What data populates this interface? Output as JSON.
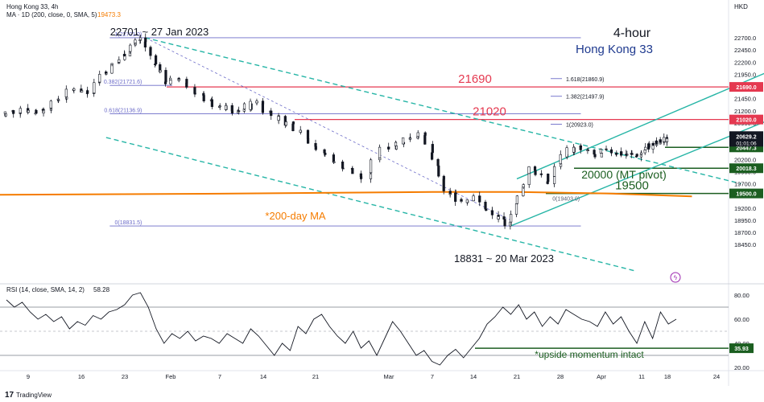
{
  "header": {
    "symbol": "Hong Kong 33, 4h",
    "ma_legend": "MA · 1D (200, close, 0, SMA, 5)",
    "ma_value": "19473.3",
    "currency": "HKD",
    "timeframe_title": "4-hour",
    "instrument_title": "Hong Kong 33"
  },
  "footer": {
    "logo_text": "TradingView"
  },
  "colors": {
    "up_candle": "#26a69a",
    "down_candle": "#ef5350",
    "candle_body": "#131722",
    "ma": "#f57c00",
    "channel": "#26b5a6",
    "fib": "#6b6bc8",
    "resistance": "#e53950",
    "support": "#1b5e20",
    "rsi": "#131722",
    "title_blue": "#1f3a8f",
    "price_tag": "#131722"
  },
  "chart_data": [
    {
      "type": "candlestick",
      "title": "Hong Kong 33, 4h",
      "y_axis": {
        "ticks": [
          22700,
          22450,
          22200,
          21950,
          21700,
          21450,
          21200,
          20950,
          20700,
          20450,
          20200,
          19950,
          19700,
          19450,
          19200,
          18950,
          18700,
          18450
        ],
        "tick_labels": [
          "22700.0",
          "22450.0",
          "22200.0",
          "21950.0",
          "21700.0",
          "21450.0",
          "21200.0",
          "20950.0",
          "20700.0",
          "20450.0",
          "20200.0",
          "19950.0",
          "19700.0",
          "19450.0",
          "19200.0",
          "18950.0",
          "18700.0",
          "18450.0"
        ],
        "range": [
          18450,
          22900
        ]
      },
      "x_axis": {
        "tick_labels": [
          "9",
          "16",
          "23",
          "Feb",
          "7",
          "14",
          "21",
          "Mar",
          "7",
          "14",
          "21",
          "28",
          "Apr",
          "11",
          "18",
          "24"
        ]
      },
      "price_path": [
        {
          "date": "2023-01-05",
          "close": 21050
        },
        {
          "date": "2023-01-09",
          "close": 21250
        },
        {
          "date": "2023-01-11",
          "close": 21150
        },
        {
          "date": "2023-01-13",
          "close": 21400
        },
        {
          "date": "2023-01-16",
          "close": 21650
        },
        {
          "date": "2023-01-18",
          "close": 21550
        },
        {
          "date": "2023-01-20",
          "close": 21950
        },
        {
          "date": "2023-01-23",
          "close": 22250
        },
        {
          "date": "2023-01-25",
          "close": 22550
        },
        {
          "date": "2023-01-27",
          "close": 22701
        },
        {
          "date": "2023-01-30",
          "close": 22150
        },
        {
          "date": "2023-02-01",
          "close": 21750
        },
        {
          "date": "2023-02-03",
          "close": 21850
        },
        {
          "date": "2023-02-06",
          "close": 21400
        },
        {
          "date": "2023-02-08",
          "close": 21300
        },
        {
          "date": "2023-02-10",
          "close": 21150
        },
        {
          "date": "2023-02-14",
          "close": 21400
        },
        {
          "date": "2023-02-16",
          "close": 21100
        },
        {
          "date": "2023-02-20",
          "close": 20800
        },
        {
          "date": "2023-02-22",
          "close": 20400
        },
        {
          "date": "2023-02-24",
          "close": 20150
        },
        {
          "date": "2023-02-27",
          "close": 19800
        },
        {
          "date": "2023-03-01",
          "close": 20450
        },
        {
          "date": "2023-03-03",
          "close": 20550
        },
        {
          "date": "2023-03-06",
          "close": 20750
        },
        {
          "date": "2023-03-08",
          "close": 20200
        },
        {
          "date": "2023-03-10",
          "close": 19550
        },
        {
          "date": "2023-03-13",
          "close": 19350
        },
        {
          "date": "2023-03-15",
          "close": 19450
        },
        {
          "date": "2023-03-17",
          "close": 19150
        },
        {
          "date": "2023-03-20",
          "close": 18831
        },
        {
          "date": "2023-03-22",
          "close": 19450
        },
        {
          "date": "2023-03-24",
          "close": 20050
        },
        {
          "date": "2023-03-27",
          "close": 19700
        },
        {
          "date": "2023-03-29",
          "close": 20300
        },
        {
          "date": "2023-03-31",
          "close": 20450
        },
        {
          "date": "2023-04-03",
          "close": 20250
        },
        {
          "date": "2023-04-05",
          "close": 20400
        },
        {
          "date": "2023-04-11",
          "close": 20250
        },
        {
          "date": "2023-04-13",
          "close": 20450
        },
        {
          "date": "2023-04-17",
          "close": 20550
        },
        {
          "date": "2023-04-19",
          "close": 20629
        }
      ],
      "current_price": {
        "value": "20629.2",
        "countdown": "01:01:06"
      },
      "ma_200_day": {
        "label": "*200-day MA",
        "value": 19473.3
      },
      "fibonacci_retracement": [
        {
          "label": "1(22701.0)",
          "value": 22701.0
        },
        {
          "label": "0.618(21136.9)",
          "value": 21136.9
        },
        {
          "label": "0(18831.5)",
          "value": 18831.5
        },
        {
          "label": "0.382(21721.6)",
          "value": 21721.6
        }
      ],
      "fibonacci_extension": [
        {
          "label": "1.618(21860.9)",
          "value": 21860.9
        },
        {
          "label": "1.382(21497.9)",
          "value": 21497.9
        },
        {
          "label": "1(20923.0)",
          "value": 20923.0
        },
        {
          "label": "0(19403.0)",
          "value": 19403.0
        }
      ],
      "levels": [
        {
          "label": "21690",
          "value": 21690,
          "tag": "21690.0",
          "kind": "resistance"
        },
        {
          "label": "21020",
          "value": 21020,
          "tag": "21020.0",
          "kind": "resistance"
        },
        {
          "label": "",
          "value": 20447.3,
          "tag": "20447.3",
          "kind": "support"
        },
        {
          "label": "20000 (MT pivot)",
          "value": 20018.3,
          "tag": "20018.3",
          "kind": "pivot"
        },
        {
          "label": "19500",
          "value": 19500,
          "tag": "19500.0",
          "kind": "support"
        }
      ],
      "annotations": [
        {
          "text": "22701 ~ 27 Jan 2023"
        },
        {
          "text": "18831 ~ 20 Mar 2023"
        }
      ]
    },
    {
      "type": "line",
      "title": "RSI (14, close, SMA, 14, 2)",
      "current_value": "58.28",
      "y_axis": {
        "ticks": [
          80,
          60,
          40,
          20
        ],
        "tick_labels": [
          "80.00",
          "60.00",
          "40.00",
          "20.00"
        ],
        "range": [
          15,
          85
        ]
      },
      "guide_levels": [
        70,
        50,
        30
      ],
      "series": [
        {
          "values": [
            76,
            70,
            74,
            66,
            60,
            64,
            58,
            62,
            52,
            58,
            55,
            63,
            60,
            66,
            68,
            72,
            80,
            82,
            70,
            52,
            40,
            48,
            44,
            50,
            42,
            46,
            44,
            40,
            48,
            44,
            40,
            52,
            46,
            38,
            30,
            40,
            34,
            54,
            48,
            60,
            64,
            54,
            46,
            40,
            50,
            36,
            42,
            30,
            44,
            58,
            50,
            40,
            30,
            34,
            25,
            22,
            30,
            35,
            28,
            36,
            44,
            56,
            62,
            70,
            64,
            72,
            60,
            66,
            54,
            62,
            56,
            68,
            64,
            60,
            58,
            54,
            66,
            56,
            62,
            50,
            40,
            58,
            44,
            66,
            56,
            60
          ]
        }
      ],
      "support_level": {
        "value": 35.93,
        "tag": "35.93",
        "label": "*upside momentum intact"
      }
    }
  ]
}
